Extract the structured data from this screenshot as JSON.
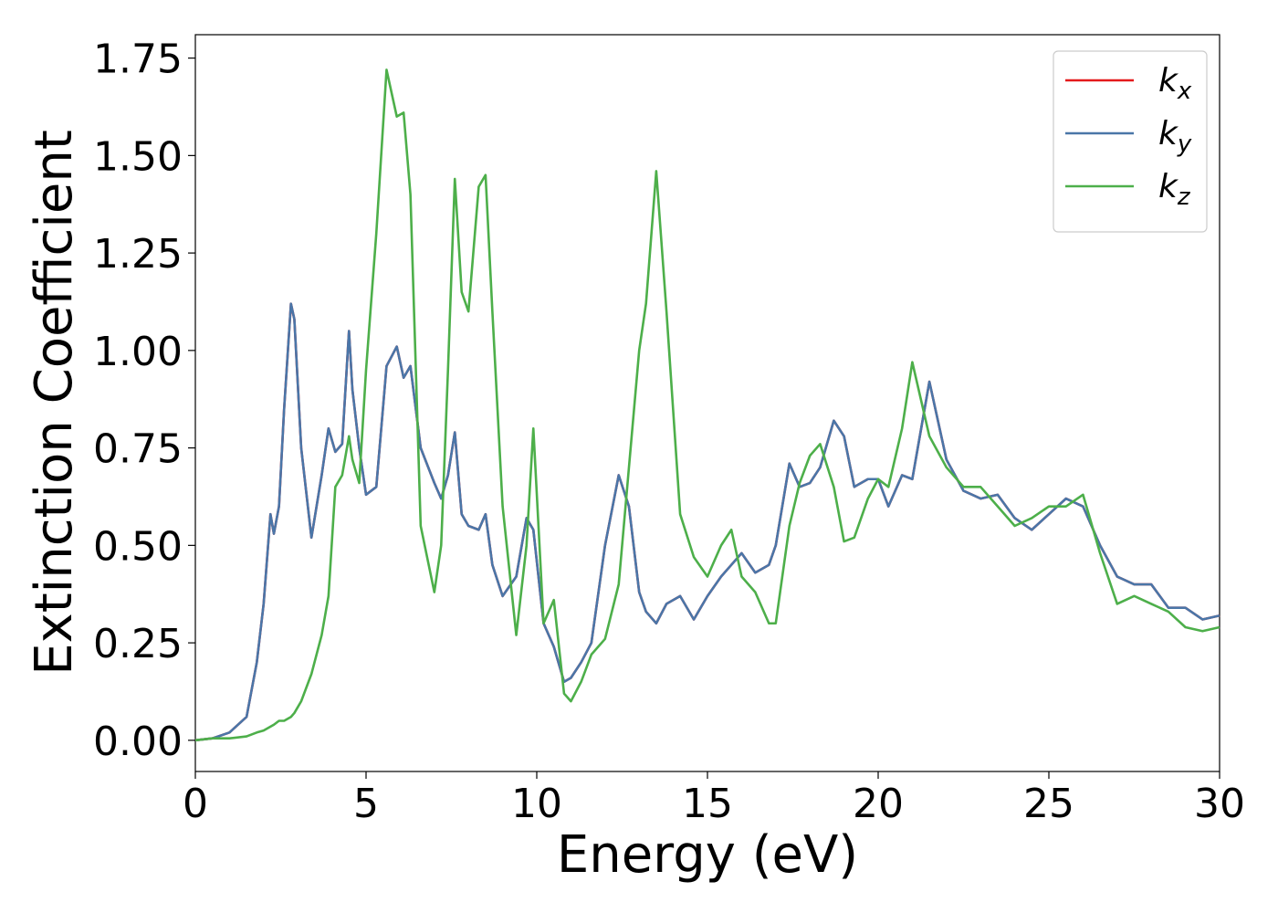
{
  "chart_data": {
    "type": "line",
    "xlabel": "Energy (eV)",
    "ylabel": "Extinction Coefficient",
    "xlim": [
      0,
      30
    ],
    "ylim": [
      -0.08,
      1.81
    ],
    "xticks": [
      0,
      5,
      10,
      15,
      20,
      25,
      30
    ],
    "yticks": [
      {
        "value": 0,
        "label": "0.00"
      },
      {
        "value": 0.25,
        "label": "0.25"
      },
      {
        "value": 0.5,
        "label": "0.50"
      },
      {
        "value": 0.75,
        "label": "0.75"
      },
      {
        "value": 1,
        "label": "1.00"
      },
      {
        "value": 1.25,
        "label": "1.25"
      },
      {
        "value": 1.5,
        "label": "1.50"
      },
      {
        "value": 1.75,
        "label": "1.75"
      }
    ],
    "grid": false,
    "legend": "upper right",
    "x": [
      0,
      0.5,
      1,
      1.5,
      1.8,
      2,
      2.2,
      2.3,
      2.45,
      2.6,
      2.8,
      2.9,
      3.1,
      3.4,
      3.7,
      3.9,
      4.1,
      4.3,
      4.5,
      4.6,
      4.8,
      5,
      5.3,
      5.6,
      5.9,
      6.1,
      6.3,
      6.6,
      7,
      7.2,
      7.4,
      7.6,
      7.8,
      8,
      8.3,
      8.5,
      8.7,
      9,
      9.4,
      9.7,
      9.9,
      10.2,
      10.5,
      10.8,
      11,
      11.3,
      11.6,
      12,
      12.4,
      12.7,
      13,
      13.2,
      13.5,
      13.8,
      14.2,
      14.6,
      15,
      15.4,
      15.7,
      16,
      16.4,
      16.8,
      17,
      17.4,
      17.7,
      18,
      18.3,
      18.7,
      19,
      19.3,
      19.7,
      20,
      20.3,
      20.7,
      21,
      21.5,
      22,
      22.5,
      23,
      23.5,
      24,
      24.5,
      25,
      25.5,
      26,
      26.5,
      27,
      27.5,
      28,
      28.5,
      29,
      29.5,
      30
    ],
    "series": [
      {
        "name": "kx",
        "color": "#e41a1c",
        "values": [
          0,
          0.005,
          0.02,
          0.06,
          0.2,
          0.35,
          0.58,
          0.53,
          0.6,
          0.85,
          1.12,
          1.08,
          0.75,
          0.52,
          0.68,
          0.8,
          0.74,
          0.76,
          1.05,
          0.9,
          0.75,
          0.63,
          0.65,
          0.96,
          1.01,
          0.93,
          0.96,
          0.75,
          0.66,
          0.62,
          0.68,
          0.79,
          0.58,
          0.55,
          0.54,
          0.58,
          0.45,
          0.37,
          0.42,
          0.57,
          0.54,
          0.3,
          0.24,
          0.15,
          0.16,
          0.2,
          0.25,
          0.5,
          0.68,
          0.6,
          0.38,
          0.33,
          0.3,
          0.35,
          0.37,
          0.31,
          0.37,
          0.42,
          0.45,
          0.48,
          0.43,
          0.45,
          0.5,
          0.71,
          0.65,
          0.66,
          0.7,
          0.82,
          0.78,
          0.65,
          0.67,
          0.67,
          0.6,
          0.68,
          0.67,
          0.92,
          0.72,
          0.64,
          0.62,
          0.63,
          0.57,
          0.54,
          0.58,
          0.62,
          0.6,
          0.5,
          0.42,
          0.4,
          0.4,
          0.34,
          0.34,
          0.31,
          0.32
        ]
      },
      {
        "name": "ky",
        "color": "#4a76a8",
        "values": [
          0,
          0.005,
          0.02,
          0.06,
          0.2,
          0.35,
          0.58,
          0.53,
          0.6,
          0.85,
          1.12,
          1.08,
          0.75,
          0.52,
          0.68,
          0.8,
          0.74,
          0.76,
          1.05,
          0.9,
          0.75,
          0.63,
          0.65,
          0.96,
          1.01,
          0.93,
          0.96,
          0.75,
          0.66,
          0.62,
          0.68,
          0.79,
          0.58,
          0.55,
          0.54,
          0.58,
          0.45,
          0.37,
          0.42,
          0.57,
          0.54,
          0.3,
          0.24,
          0.15,
          0.16,
          0.2,
          0.25,
          0.5,
          0.68,
          0.6,
          0.38,
          0.33,
          0.3,
          0.35,
          0.37,
          0.31,
          0.37,
          0.42,
          0.45,
          0.48,
          0.43,
          0.45,
          0.5,
          0.71,
          0.65,
          0.66,
          0.7,
          0.82,
          0.78,
          0.65,
          0.67,
          0.67,
          0.6,
          0.68,
          0.67,
          0.92,
          0.72,
          0.64,
          0.62,
          0.63,
          0.57,
          0.54,
          0.58,
          0.62,
          0.6,
          0.5,
          0.42,
          0.4,
          0.4,
          0.34,
          0.34,
          0.31,
          0.32
        ]
      },
      {
        "name": "kz",
        "color": "#4daf4a",
        "values": [
          0,
          0.005,
          0.005,
          0.01,
          0.02,
          0.025,
          0.035,
          0.04,
          0.05,
          0.05,
          0.06,
          0.07,
          0.1,
          0.17,
          0.27,
          0.37,
          0.65,
          0.68,
          0.78,
          0.72,
          0.66,
          0.95,
          1.3,
          1.72,
          1.6,
          1.61,
          1.4,
          0.55,
          0.38,
          0.5,
          0.95,
          1.44,
          1.15,
          1.1,
          1.42,
          1.45,
          1.1,
          0.6,
          0.27,
          0.5,
          0.8,
          0.3,
          0.36,
          0.12,
          0.1,
          0.15,
          0.22,
          0.26,
          0.4,
          0.7,
          1.0,
          1.12,
          1.46,
          1.1,
          0.58,
          0.47,
          0.42,
          0.5,
          0.54,
          0.42,
          0.38,
          0.3,
          0.3,
          0.55,
          0.66,
          0.73,
          0.76,
          0.65,
          0.51,
          0.52,
          0.62,
          0.67,
          0.65,
          0.8,
          0.97,
          0.78,
          0.7,
          0.65,
          0.65,
          0.6,
          0.55,
          0.57,
          0.6,
          0.6,
          0.63,
          0.48,
          0.35,
          0.37,
          0.35,
          0.33,
          0.29,
          0.28,
          0.29
        ]
      }
    ]
  }
}
